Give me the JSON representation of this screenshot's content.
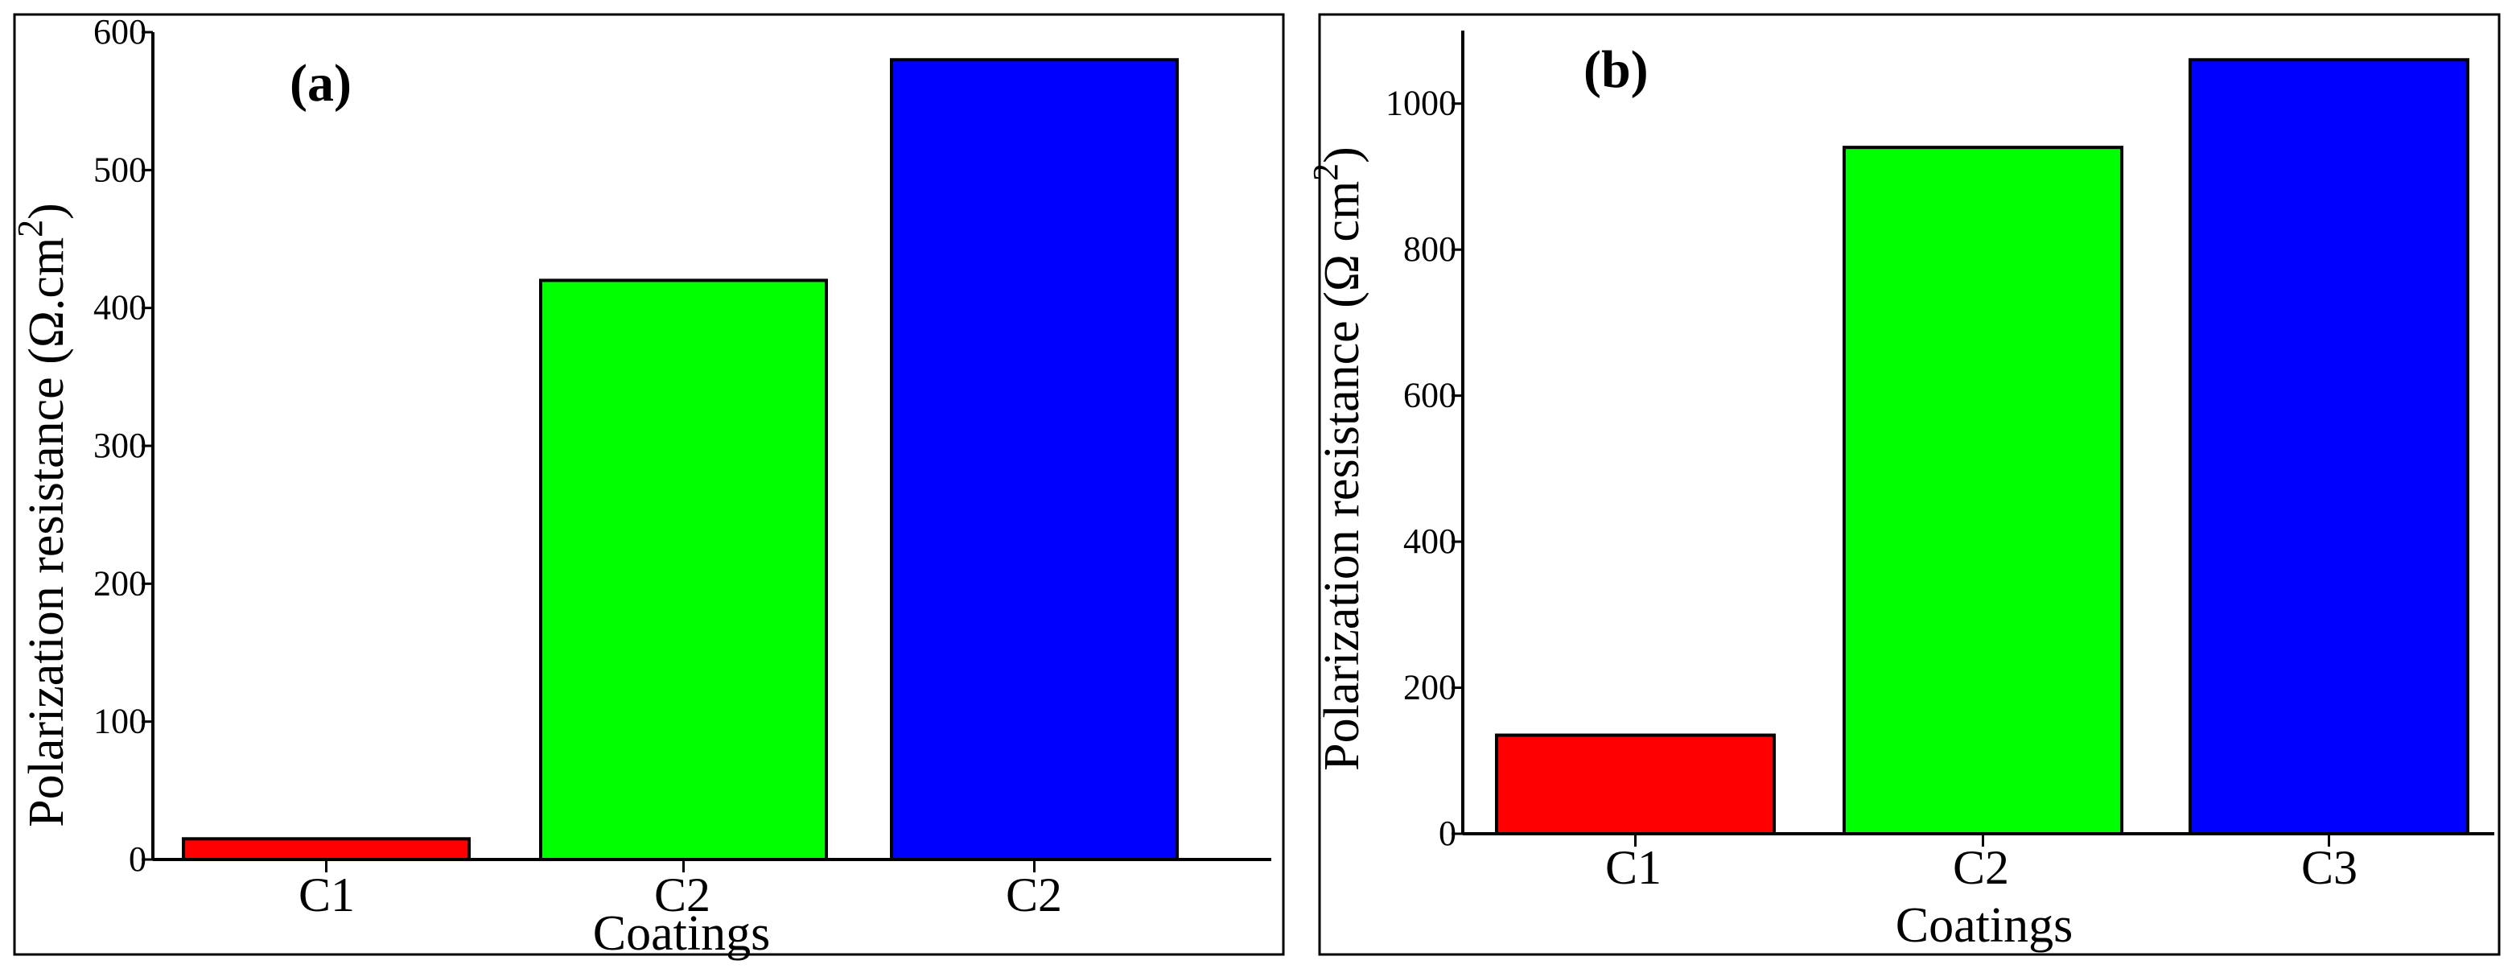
{
  "chart_data": [
    {
      "type": "bar",
      "panel_label": "(a)",
      "categories": [
        "C1",
        "C2",
        "C2"
      ],
      "values": [
        15,
        420,
        580
      ],
      "colors": [
        "#ff0000",
        "#00ff00",
        "#0000ff"
      ],
      "xlabel": "Coatings",
      "ylabel": "Polarization resistance (Ω.cm",
      "ylabel_sup": "2",
      "ylabel_close": ")",
      "ylim": [
        0,
        600
      ],
      "yticks": [
        0,
        100,
        200,
        300,
        400,
        500,
        600
      ],
      "ytick_labels": [
        "0",
        "100",
        "200",
        "300",
        "400",
        "500",
        "600"
      ],
      "grid": false,
      "legend": "none"
    },
    {
      "type": "bar",
      "panel_label": "(b)",
      "categories": [
        "C1",
        "C2",
        "C3"
      ],
      "values": [
        135,
        940,
        1060
      ],
      "colors": [
        "#ff0000",
        "#00ff00",
        "#0000ff"
      ],
      "xlabel": "Coatings",
      "ylabel": "Polarization resistance (Ω cm",
      "ylabel_sup": "2",
      "ylabel_close": ")",
      "ylim": [
        0,
        1100
      ],
      "yticks": [
        0,
        200,
        400,
        600,
        800,
        1000
      ],
      "ytick_labels": [
        "0",
        "200",
        "400",
        "600",
        "800",
        "1000"
      ],
      "grid": false,
      "legend": "none"
    }
  ]
}
